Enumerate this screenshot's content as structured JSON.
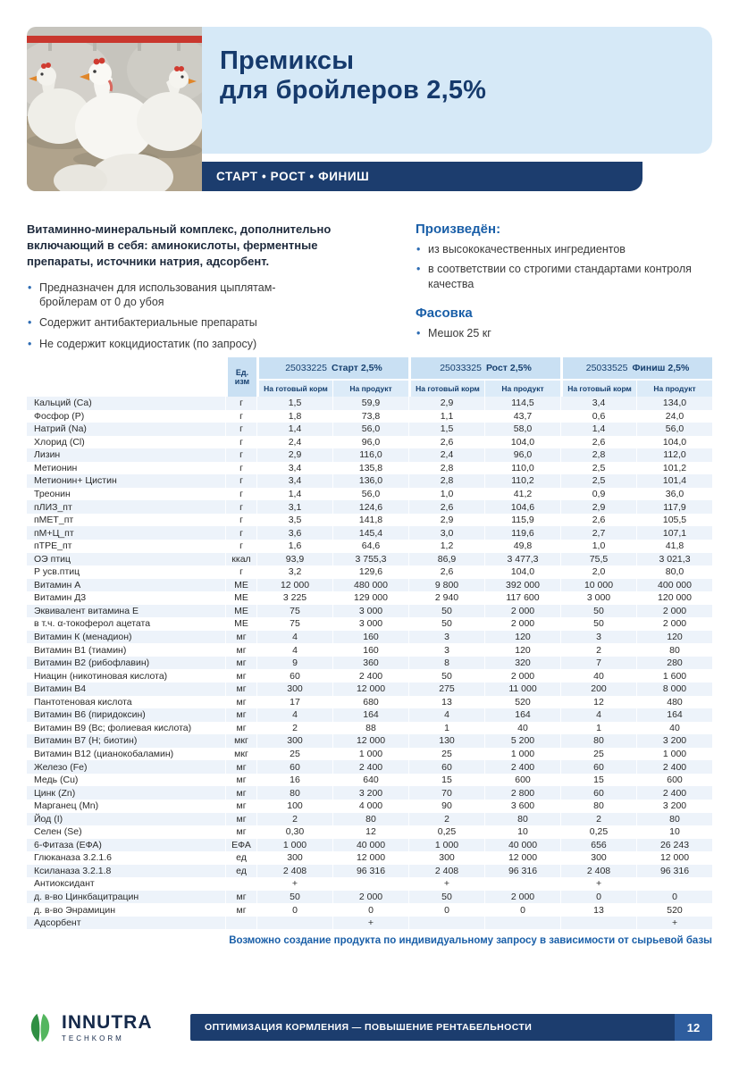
{
  "colors": {
    "navy": "#1c3d6e",
    "light_blue_panel": "#d6e9f7",
    "accent_blue": "#1a5fa8",
    "table_header_blue": "#c9e0f3",
    "table_subheader_blue": "#dcebf8",
    "row_stripe": "#edf3fa",
    "logo_green": "#3a9e4d",
    "drinker_red": "#c9372e"
  },
  "header": {
    "title_line1": "Премиксы",
    "title_line2": "для бройлеров 2,5%",
    "phase_bar": "СТАРТ • РОСТ • ФИНИШ"
  },
  "intro": {
    "lead": "Витаминно-минеральный комплекс, дополнительно включающий в себя: аминокислоты, ферментные препараты, источники натрия, адсорбент.",
    "bullets": [
      "Предназначен для использования цыплятам-бройлерам от 0 до убоя",
      "Содержит антибактериальные препараты",
      "Не содержит кокцидиостатик (по запросу)"
    ],
    "produced_heading": "Произведён:",
    "produced_bullets": [
      "из высококачественных ингредиентов",
      "в соответствии со строгими стандартами контроля качества"
    ],
    "packaging_heading": "Фасовка",
    "packaging_bullets": [
      "Мешок 25 кг"
    ]
  },
  "table": {
    "unit_header": "Ед.\nизм",
    "products": [
      {
        "code": "25033225",
        "name": "Старт 2,5%"
      },
      {
        "code": "25033325",
        "name": "Рост 2,5%"
      },
      {
        "code": "25033525",
        "name": "Финиш 2,5%"
      }
    ],
    "subheaders": [
      "На готовый корм",
      "На продукт"
    ],
    "rows": [
      [
        "Кальций (Са)",
        "г",
        "1,5",
        "59,9",
        "2,9",
        "114,5",
        "3,4",
        "134,0"
      ],
      [
        "Фосфор (Р)",
        "г",
        "1,8",
        "73,8",
        "1,1",
        "43,7",
        "0,6",
        "24,0"
      ],
      [
        "Натрий (Na)",
        "г",
        "1,4",
        "56,0",
        "1,5",
        "58,0",
        "1,4",
        "56,0"
      ],
      [
        "Хлорид (Cl)",
        "г",
        "2,4",
        "96,0",
        "2,6",
        "104,0",
        "2,6",
        "104,0"
      ],
      [
        "Лизин",
        "г",
        "2,9",
        "116,0",
        "2,4",
        "96,0",
        "2,8",
        "112,0"
      ],
      [
        "Метионин",
        "г",
        "3,4",
        "135,8",
        "2,8",
        "110,0",
        "2,5",
        "101,2"
      ],
      [
        "Метионин+ Цистин",
        "г",
        "3,4",
        "136,0",
        "2,8",
        "110,2",
        "2,5",
        "101,4"
      ],
      [
        "Треонин",
        "г",
        "1,4",
        "56,0",
        "1,0",
        "41,2",
        "0,9",
        "36,0"
      ],
      [
        "пЛИЗ_пт",
        "г",
        "3,1",
        "124,6",
        "2,6",
        "104,6",
        "2,9",
        "117,9"
      ],
      [
        "пМЕТ_пт",
        "г",
        "3,5",
        "141,8",
        "2,9",
        "115,9",
        "2,6",
        "105,5"
      ],
      [
        "пМ+Ц_пт",
        "г",
        "3,6",
        "145,4",
        "3,0",
        "119,6",
        "2,7",
        "107,1"
      ],
      [
        "пТРЕ_пт",
        "г",
        "1,6",
        "64,6",
        "1,2",
        "49,8",
        "1,0",
        "41,8"
      ],
      [
        "ОЭ птиц",
        "ккал",
        "93,9",
        "3 755,3",
        "86,9",
        "3 477,3",
        "75,5",
        "3 021,3"
      ],
      [
        "Р усв.птиц",
        "г",
        "3,2",
        "129,6",
        "2,6",
        "104,0",
        "2,0",
        "80,0"
      ],
      [
        "Витамин А",
        "МЕ",
        "12 000",
        "480 000",
        "9 800",
        "392 000",
        "10 000",
        "400 000"
      ],
      [
        "Витамин Д3",
        "МЕ",
        "3 225",
        "129 000",
        "2 940",
        "117 600",
        "3 000",
        "120 000"
      ],
      [
        "Эквивалент витамина Е",
        "МЕ",
        "75",
        "3 000",
        "50",
        "2 000",
        "50",
        "2 000"
      ],
      [
        "в т.ч. α-токоферол ацетата",
        "МЕ",
        "75",
        "3 000",
        "50",
        "2 000",
        "50",
        "2 000"
      ],
      [
        "Витамин К (менадион)",
        "мг",
        "4",
        "160",
        "3",
        "120",
        "3",
        "120"
      ],
      [
        "Витамин В1 (тиамин)",
        "мг",
        "4",
        "160",
        "3",
        "120",
        "2",
        "80"
      ],
      [
        "Витамин В2 (рибофлавин)",
        "мг",
        "9",
        "360",
        "8",
        "320",
        "7",
        "280"
      ],
      [
        "Ниацин (никотиновая кислота)",
        "мг",
        "60",
        "2 400",
        "50",
        "2 000",
        "40",
        "1 600"
      ],
      [
        "Витамин В4",
        "мг",
        "300",
        "12 000",
        "275",
        "11 000",
        "200",
        "8 000"
      ],
      [
        "Пантотеновая кислота",
        "мг",
        "17",
        "680",
        "13",
        "520",
        "12",
        "480"
      ],
      [
        "Витамин В6 (пиридоксин)",
        "мг",
        "4",
        "164",
        "4",
        "164",
        "4",
        "164"
      ],
      [
        "Витамин В9 (Вс; фолиевая кислота)",
        "мг",
        "2",
        "88",
        "1",
        "40",
        "1",
        "40"
      ],
      [
        "Витамин В7 (Н; биотин)",
        "мкг",
        "300",
        "12 000",
        "130",
        "5 200",
        "80",
        "3 200"
      ],
      [
        "Витамин В12 (цианокобаламин)",
        "мкг",
        "25",
        "1 000",
        "25",
        "1 000",
        "25",
        "1 000"
      ],
      [
        "Железо (Fe)",
        "мг",
        "60",
        "2 400",
        "60",
        "2 400",
        "60",
        "2 400"
      ],
      [
        "Медь (Cu)",
        "мг",
        "16",
        "640",
        "15",
        "600",
        "15",
        "600"
      ],
      [
        "Цинк (Zn)",
        "мг",
        "80",
        "3 200",
        "70",
        "2 800",
        "60",
        "2 400"
      ],
      [
        "Марганец (Mn)",
        "мг",
        "100",
        "4 000",
        "90",
        "3 600",
        "80",
        "3 200"
      ],
      [
        "Йод (I)",
        "мг",
        "2",
        "80",
        "2",
        "80",
        "2",
        "80"
      ],
      [
        "Селен (Se)",
        "мг",
        "0,30",
        "12",
        "0,25",
        "10",
        "0,25",
        "10"
      ],
      [
        "6-Фитаза (ЕФА)",
        "ЕФА",
        "1 000",
        "40 000",
        "1 000",
        "40 000",
        "656",
        "26 243"
      ],
      [
        "Глюканаза 3.2.1.6",
        "ед",
        "300",
        "12 000",
        "300",
        "12 000",
        "300",
        "12 000"
      ],
      [
        "Ксиланаза 3.2.1.8",
        "ед",
        "2 408",
        "96 316",
        "2 408",
        "96 316",
        "2 408",
        "96 316"
      ],
      [
        "Антиоксидант",
        "",
        "+",
        "",
        "+",
        "",
        "+",
        ""
      ],
      [
        "д. в-во Цинкбацитрацин",
        "мг",
        "50",
        "2 000",
        "50",
        "2 000",
        "0",
        "0"
      ],
      [
        "д. в-во Энрамицин",
        "мг",
        "0",
        "0",
        "0",
        "0",
        "13",
        "520"
      ],
      [
        "Адсорбент",
        "",
        "",
        "+",
        "",
        "",
        "",
        "+"
      ]
    ],
    "note": "Возможно создание продукта по индивидуальному запросу в зависимости от сырьевой базы"
  },
  "footer": {
    "logo_name": "INNUTRA",
    "logo_sub": "TECHKORM",
    "bar_text": "ОПТИМИЗАЦИЯ КОРМЛЕНИЯ — ПОВЫШЕНИЕ РЕНТАБЕЛЬНОСТИ",
    "page_number": "12"
  }
}
